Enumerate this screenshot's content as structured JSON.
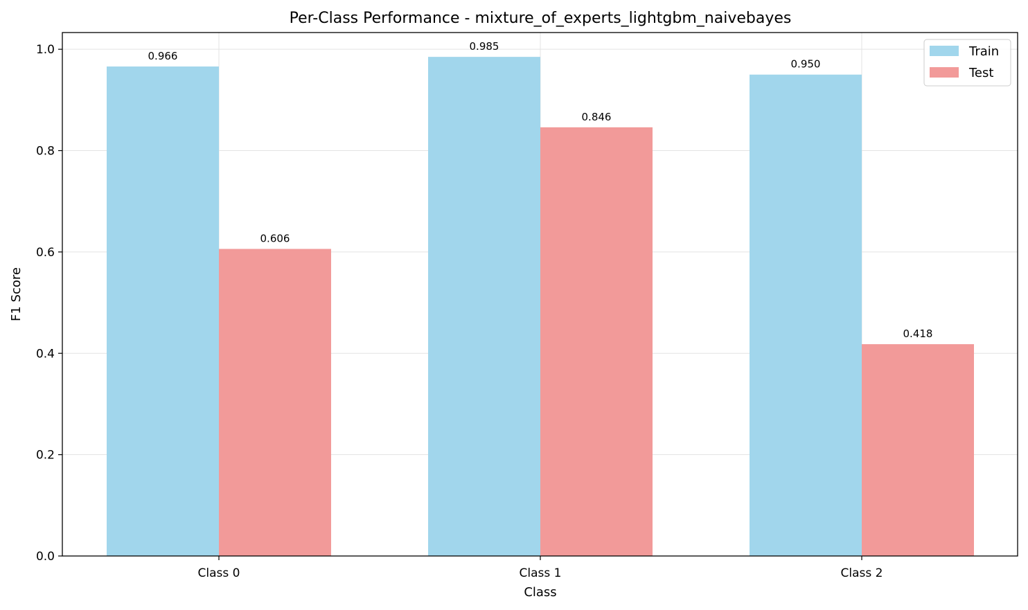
{
  "chart_data": {
    "type": "bar",
    "title": "Per-Class Performance - mixture_of_experts_lightgbm_naivebayes",
    "xlabel": "Class",
    "ylabel": "F1 Score",
    "categories": [
      "Class 0",
      "Class 1",
      "Class 2"
    ],
    "series": [
      {
        "name": "Train",
        "values": [
          0.966,
          0.985,
          0.95
        ],
        "labels": [
          "0.966",
          "0.985",
          "0.950"
        ],
        "color": "#a1d6ec"
      },
      {
        "name": "Test",
        "values": [
          0.606,
          0.846,
          0.418
        ],
        "labels": [
          "0.606",
          "0.846",
          "0.418"
        ],
        "color": "#f29a99"
      }
    ],
    "ylim": [
      0,
      1.033
    ],
    "yticks": [
      0.0,
      0.2,
      0.4,
      0.6,
      0.8,
      1.0
    ],
    "ytick_labels": [
      "0.0",
      "0.2",
      "0.4",
      "0.6",
      "0.8",
      "1.0"
    ],
    "grid": true,
    "legend_position": "top-right"
  }
}
